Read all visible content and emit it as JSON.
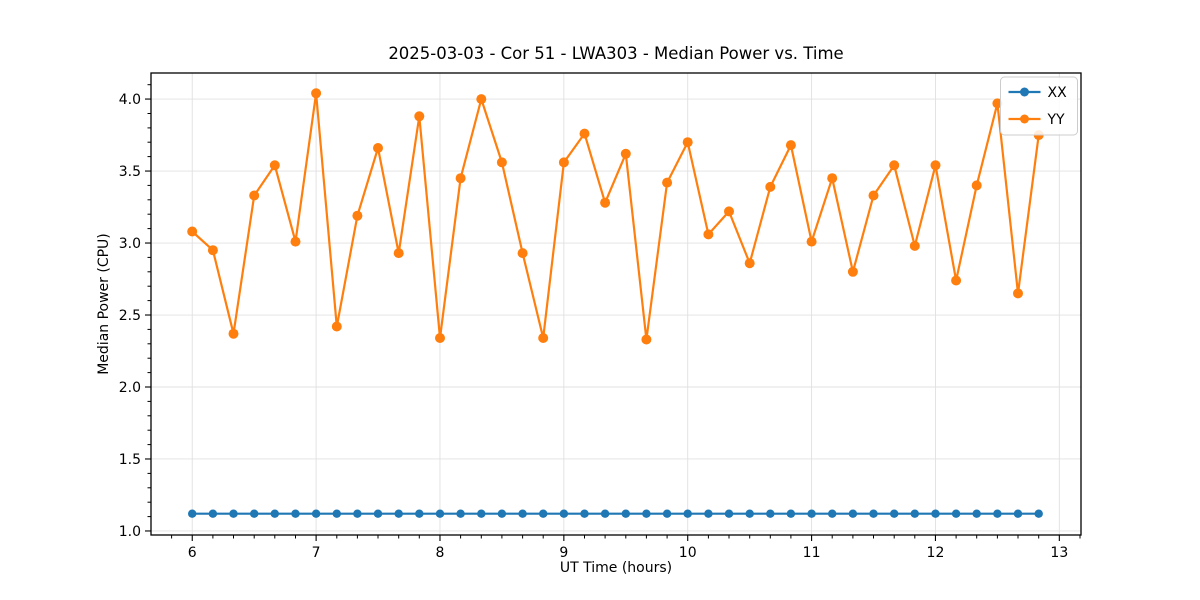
{
  "figure": {
    "title": "2025-03-03 - Cor 51 - LWA303 - Median Power vs. Time",
    "xlabel": "UT Time (hours)",
    "ylabel": "Median Power (CPU)"
  },
  "chart_data": {
    "type": "line",
    "title": "2025-03-03 - Cor 51 - LWA303 - Median Power vs. Time",
    "xlabel": "UT Time (hours)",
    "ylabel": "Median Power (CPU)",
    "xlim": [
      5.667,
      13.175
    ],
    "ylim": [
      0.972,
      4.181
    ],
    "xticks": [
      6,
      7,
      8,
      9,
      10,
      11,
      12,
      13
    ],
    "yticks": [
      "1.0",
      "1.5",
      "2.0",
      "2.5",
      "3.0",
      "3.5",
      "4.0"
    ],
    "x_minor_step": 0.16667,
    "y_minor_step": 0.1,
    "grid": "major gridlines only, light gray, on both axes",
    "legend": {
      "position": "upper right",
      "entries": [
        "XX",
        "YY"
      ]
    },
    "colors": {
      "XX": "#1f77b4",
      "YY": "#ff7f0e",
      "grid": "#e0e0e0",
      "spine": "#000000"
    },
    "x": [
      6.0,
      6.1667,
      6.3333,
      6.5,
      6.6667,
      6.8333,
      7.0,
      7.1667,
      7.3333,
      7.5,
      7.6667,
      7.8333,
      8.0,
      8.1667,
      8.3333,
      8.5,
      8.6667,
      8.8333,
      9.0,
      9.1667,
      9.3333,
      9.5,
      9.6667,
      9.8333,
      10.0,
      10.1667,
      10.3333,
      10.5,
      10.6667,
      10.8333,
      11.0,
      11.1667,
      11.3333,
      11.5,
      11.6667,
      11.8333,
      12.0,
      12.1667,
      12.3333,
      12.5,
      12.6667,
      12.8333
    ],
    "series": [
      {
        "name": "XX",
        "color": "#1f77b4",
        "marker_radius": 4.2,
        "values": [
          1.12,
          1.12,
          1.12,
          1.12,
          1.12,
          1.12,
          1.12,
          1.12,
          1.12,
          1.12,
          1.12,
          1.12,
          1.12,
          1.12,
          1.12,
          1.12,
          1.12,
          1.12,
          1.12,
          1.12,
          1.12,
          1.12,
          1.12,
          1.12,
          1.12,
          1.12,
          1.12,
          1.12,
          1.12,
          1.12,
          1.12,
          1.12,
          1.12,
          1.12,
          1.12,
          1.12,
          1.12,
          1.12,
          1.12,
          1.12,
          1.12,
          1.12
        ]
      },
      {
        "name": "YY",
        "color": "#ff7f0e",
        "marker_radius": 5.0,
        "values": [
          3.08,
          2.95,
          2.37,
          3.33,
          3.54,
          3.01,
          4.04,
          2.42,
          3.19,
          3.66,
          2.93,
          3.88,
          2.34,
          3.45,
          4.0,
          3.56,
          2.93,
          2.34,
          3.56,
          3.76,
          3.28,
          3.62,
          2.33,
          3.42,
          3.7,
          3.06,
          3.22,
          2.86,
          3.39,
          3.68,
          3.01,
          3.45,
          2.8,
          3.33,
          3.54,
          2.98,
          3.54,
          2.74,
          3.4,
          3.97,
          2.65,
          3.75
        ]
      }
    ]
  }
}
